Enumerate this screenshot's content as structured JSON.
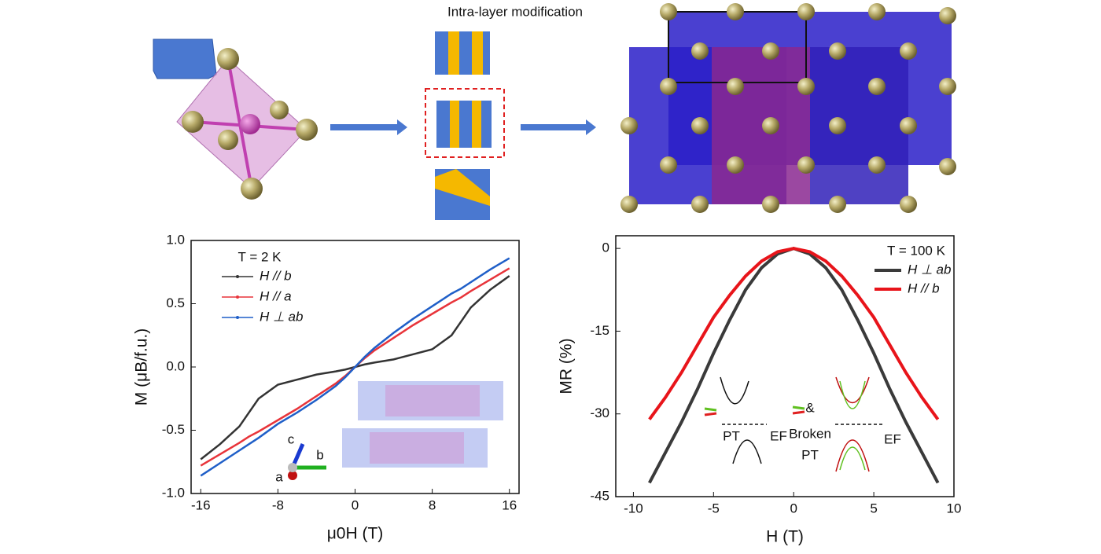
{
  "header": {
    "title": "Intra-layer modification"
  },
  "chart_data": [
    {
      "type": "line",
      "xlabel": "μ0H (T)",
      "ylabel": "M (μB/f.u.)",
      "annotations": [
        "T = 2 K",
        "c",
        "b",
        "a"
      ],
      "x": [
        -16,
        -14,
        -12,
        -11,
        -10,
        -8,
        -6,
        -4,
        -2,
        -1,
        0,
        1,
        2,
        4,
        6,
        8,
        10,
        11,
        12,
        14,
        16
      ],
      "xlim": [
        -17,
        17
      ],
      "xticks": [
        -16,
        -8,
        0,
        8,
        16
      ],
      "ylim": [
        -1,
        1
      ],
      "yticks": [
        {
          "value": -1,
          "label": "-1.0"
        },
        -0.5,
        {
          "value": 0,
          "label": "0.0"
        },
        0.5,
        {
          "value": 1,
          "label": "1.0"
        }
      ],
      "legend": "upper left",
      "series": [
        {
          "name": "H // b",
          "color": "#333333",
          "values": [
            -0.73,
            -0.61,
            -0.47,
            -0.36,
            -0.25,
            -0.14,
            -0.1,
            -0.06,
            -0.035,
            -0.02,
            0,
            0.02,
            0.035,
            0.06,
            0.1,
            0.14,
            0.25,
            0.36,
            0.47,
            0.61,
            0.72
          ]
        },
        {
          "name": "H // a",
          "color": "#e8343a",
          "values": [
            -0.78,
            -0.69,
            -0.6,
            -0.55,
            -0.51,
            -0.42,
            -0.33,
            -0.23,
            -0.13,
            -0.07,
            0,
            0.07,
            0.13,
            0.23,
            0.33,
            0.42,
            0.51,
            0.55,
            0.6,
            0.69,
            0.78
          ]
        },
        {
          "name": "H ⊥ ab",
          "color": "#1f5fc8",
          "values": [
            -0.86,
            -0.76,
            -0.66,
            -0.61,
            -0.56,
            -0.45,
            -0.36,
            -0.26,
            -0.15,
            -0.08,
            0,
            0.08,
            0.15,
            0.27,
            0.38,
            0.48,
            0.58,
            0.62,
            0.67,
            0.77,
            0.86
          ]
        }
      ]
    },
    {
      "type": "line",
      "xlabel": "H (T)",
      "ylabel": "MR (%)",
      "annotations": [
        "T = 100 K",
        "PT",
        "EF",
        "&",
        "Broken",
        "PT",
        "EF"
      ],
      "x": [
        -9,
        -8,
        -7,
        -6,
        -5,
        -4,
        -3,
        -2,
        -1,
        0,
        1,
        2,
        3,
        4,
        5,
        6,
        7,
        8,
        9
      ],
      "xlim": [
        -11.1,
        10
      ],
      "xticks": [
        -10,
        -5,
        0,
        5,
        10
      ],
      "ylim": [
        -45,
        2.3
      ],
      "yticks": [
        -45,
        -30,
        -15,
        0
      ],
      "legend": "upper right",
      "series": [
        {
          "name": "H ⊥ ab",
          "color": "#3a3a3a",
          "values": [
            -42.5,
            -37,
            -31.5,
            -25.5,
            -19,
            -13,
            -7.5,
            -3.5,
            -1,
            0,
            -1,
            -3.5,
            -7.5,
            -13,
            -19,
            -25.5,
            -31.5,
            -37,
            -42.5
          ]
        },
        {
          "name": "H // b",
          "color": "#e8141a",
          "values": [
            -31,
            -27,
            -22.5,
            -17.5,
            -12.5,
            -8.5,
            -5,
            -2.3,
            -0.6,
            0,
            -0.6,
            -2.3,
            -5,
            -8.5,
            -12.5,
            -17.5,
            -22.5,
            -27,
            -31
          ]
        }
      ]
    }
  ]
}
